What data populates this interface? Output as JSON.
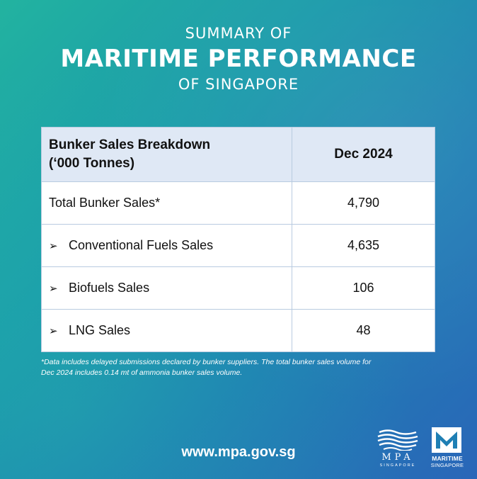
{
  "title": {
    "line1": "SUMMARY OF",
    "line2": "MARITIME PERFORMANCE",
    "line3": "OF SINGAPORE"
  },
  "table": {
    "header": {
      "label_line1": "Bunker Sales Breakdown",
      "label_line2": "(‘000 Tonnes)",
      "period": "Dec 2024"
    },
    "rows": [
      {
        "bullet": "",
        "label": "Total Bunker Sales*",
        "value": "4,790"
      },
      {
        "bullet": "➢",
        "label": "Conventional Fuels Sales",
        "value": "4,635"
      },
      {
        "bullet": "➢",
        "label": "Biofuels Sales",
        "value": "106"
      },
      {
        "bullet": "➢",
        "label": "LNG Sales",
        "value": "48"
      }
    ]
  },
  "footnote": {
    "line1": "*Data includes delayed submissions declared by bunker suppliers. The total bunker sales volume for",
    "line2": "Dec 2024 includes 0.14 mt of ammonia bunker sales volume."
  },
  "website": "www.mpa.gov.sg",
  "logos": {
    "mpa": {
      "text": "MPA",
      "subtext": "SINGAPORE",
      "icon": "mpa-waves-logo"
    },
    "maritime_singapore": {
      "line1": "MARITIME",
      "line2": "SINGAPORE",
      "icon": "maritime-singapore-m-logo"
    }
  }
}
